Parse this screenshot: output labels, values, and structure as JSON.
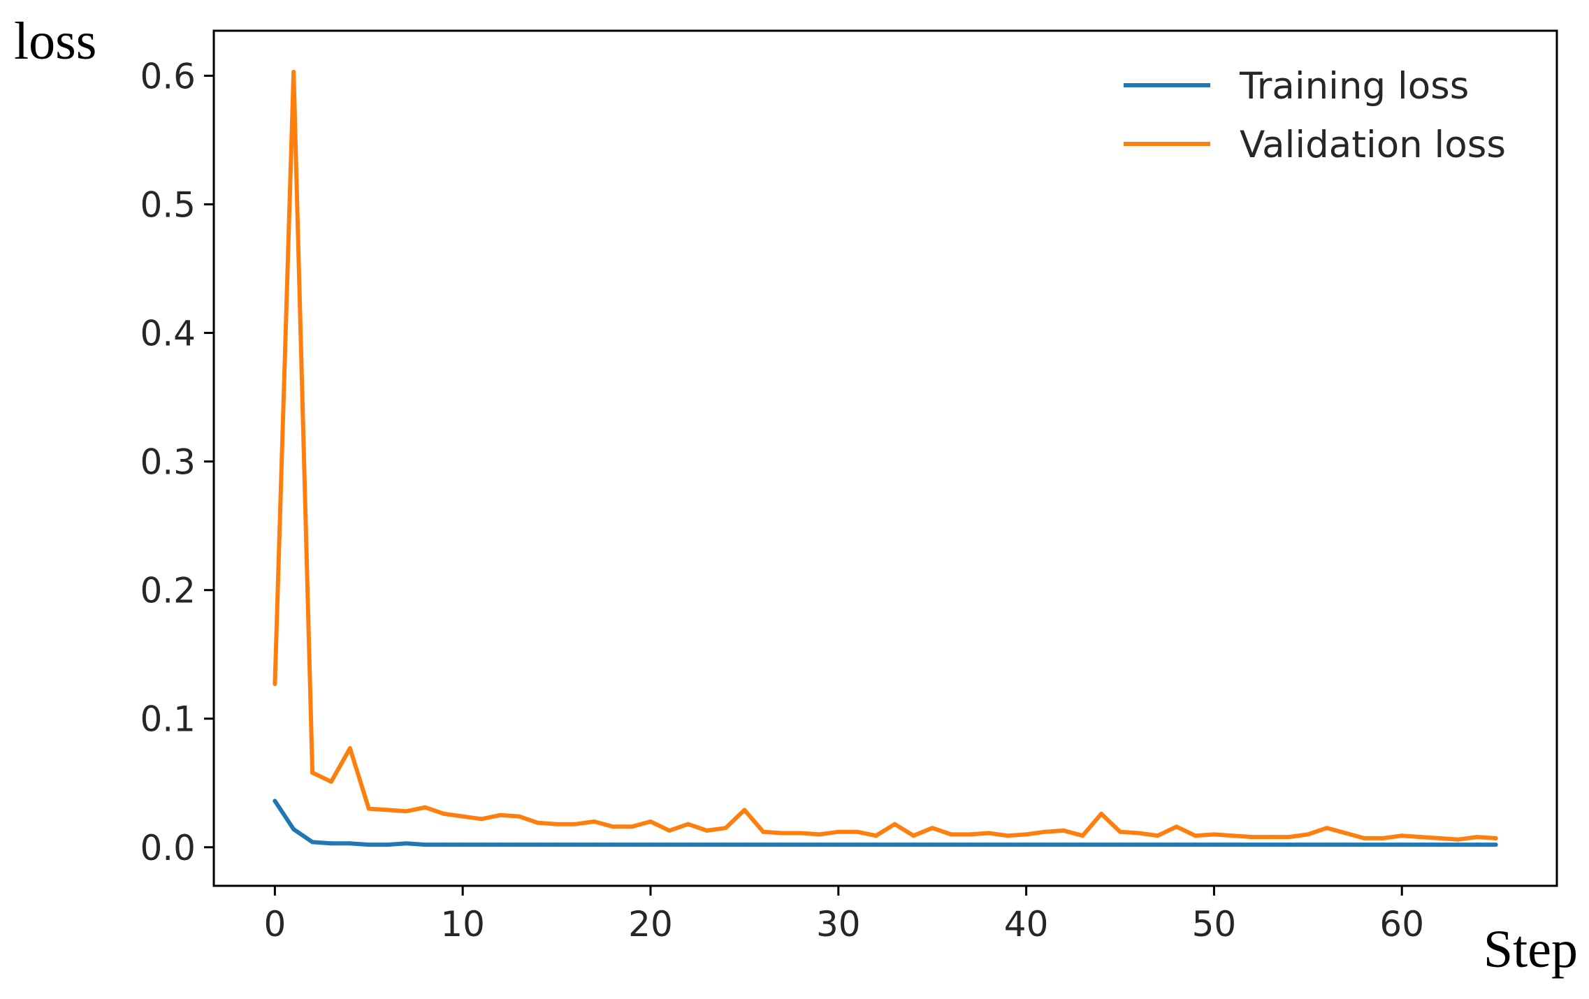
{
  "chart_data": {
    "type": "line",
    "title": "",
    "xlabel": "Step",
    "ylabel": "loss",
    "xlim": [
      -3.25,
      68.25
    ],
    "ylim": [
      -0.03,
      0.635
    ],
    "xticks": [
      0,
      10,
      20,
      30,
      40,
      50,
      60
    ],
    "xtick_labels": [
      "0",
      "10",
      "20",
      "30",
      "40",
      "50",
      "60"
    ],
    "yticks": [
      0.0,
      0.1,
      0.2,
      0.3,
      0.4,
      0.5,
      0.6
    ],
    "ytick_labels": [
      "0.0",
      "0.1",
      "0.2",
      "0.3",
      "0.4",
      "0.5",
      "0.6"
    ],
    "grid": false,
    "legend_position": "top-right",
    "x": [
      0,
      1,
      2,
      3,
      4,
      5,
      6,
      7,
      8,
      9,
      10,
      11,
      12,
      13,
      14,
      15,
      16,
      17,
      18,
      19,
      20,
      21,
      22,
      23,
      24,
      25,
      26,
      27,
      28,
      29,
      30,
      31,
      32,
      33,
      34,
      35,
      36,
      37,
      38,
      39,
      40,
      41,
      42,
      43,
      44,
      45,
      46,
      47,
      48,
      49,
      50,
      51,
      52,
      53,
      54,
      55,
      56,
      57,
      58,
      59,
      60,
      61,
      62,
      63,
      64,
      65
    ],
    "series": [
      {
        "name": "Training loss",
        "color": "#1f77b4",
        "values": [
          0.036,
          0.014,
          0.004,
          0.003,
          0.003,
          0.002,
          0.002,
          0.003,
          0.002,
          0.002,
          0.002,
          0.002,
          0.002,
          0.002,
          0.002,
          0.002,
          0.002,
          0.002,
          0.002,
          0.002,
          0.002,
          0.002,
          0.002,
          0.002,
          0.002,
          0.002,
          0.002,
          0.002,
          0.002,
          0.002,
          0.002,
          0.002,
          0.002,
          0.002,
          0.002,
          0.002,
          0.002,
          0.002,
          0.002,
          0.002,
          0.002,
          0.002,
          0.002,
          0.002,
          0.002,
          0.002,
          0.002,
          0.002,
          0.002,
          0.002,
          0.002,
          0.002,
          0.002,
          0.002,
          0.002,
          0.002,
          0.002,
          0.002,
          0.002,
          0.002,
          0.002,
          0.002,
          0.002,
          0.002,
          0.002,
          0.002
        ]
      },
      {
        "name": "Validation loss",
        "color": "#ff7f0e",
        "values": [
          0.127,
          0.603,
          0.058,
          0.051,
          0.077,
          0.03,
          0.029,
          0.028,
          0.031,
          0.026,
          0.024,
          0.022,
          0.025,
          0.024,
          0.019,
          0.018,
          0.018,
          0.02,
          0.016,
          0.016,
          0.02,
          0.013,
          0.018,
          0.013,
          0.015,
          0.029,
          0.012,
          0.011,
          0.011,
          0.01,
          0.012,
          0.012,
          0.009,
          0.018,
          0.009,
          0.015,
          0.01,
          0.01,
          0.011,
          0.009,
          0.01,
          0.012,
          0.013,
          0.009,
          0.026,
          0.012,
          0.011,
          0.009,
          0.016,
          0.009,
          0.01,
          0.009,
          0.008,
          0.008,
          0.008,
          0.01,
          0.015,
          0.011,
          0.007,
          0.007,
          0.009,
          0.008,
          0.007,
          0.006,
          0.008,
          0.007
        ]
      }
    ]
  }
}
